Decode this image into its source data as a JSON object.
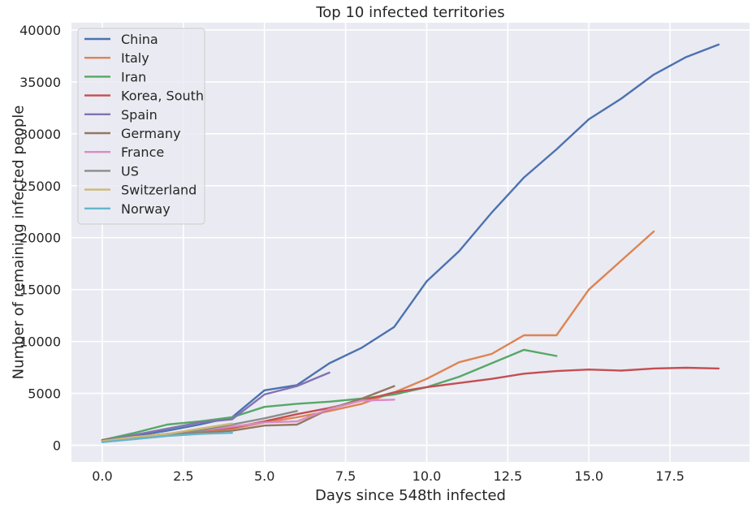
{
  "chart_data": {
    "type": "line",
    "title": "Top 10 infected territories",
    "xlabel": "Days since 548th infected",
    "ylabel": "Number of remaining infected people",
    "xlim": [
      -0.95,
      19.95
    ],
    "ylim": [
      -1600,
      40700
    ],
    "xticks": [
      0.0,
      2.5,
      5.0,
      7.5,
      10.0,
      12.5,
      15.0,
      17.5
    ],
    "xtick_labels": [
      "0.0",
      "2.5",
      "5.0",
      "7.5",
      "10.0",
      "12.5",
      "15.0",
      "17.5"
    ],
    "yticks": [
      0,
      5000,
      10000,
      15000,
      20000,
      25000,
      30000,
      35000,
      40000
    ],
    "ytick_labels": [
      "0",
      "5000",
      "10000",
      "15000",
      "20000",
      "25000",
      "30000",
      "35000",
      "40000"
    ],
    "grid": true,
    "legend_position": "top-left",
    "background": "#eaeaf2",
    "series": [
      {
        "name": "China",
        "color": "#4c72b0",
        "x": [
          0,
          1,
          2,
          3,
          4,
          5,
          6,
          7,
          8,
          9,
          10,
          11,
          12,
          13,
          14,
          15,
          16,
          17,
          18,
          19
        ],
        "y": [
          500,
          900,
          1400,
          2000,
          2700,
          5300,
          5800,
          7900,
          9400,
          11400,
          15800,
          18700,
          22400,
          25800,
          28500,
          31400,
          33400,
          35700,
          37400,
          38600
        ]
      },
      {
        "name": "Italy",
        "color": "#dd8452",
        "x": [
          0,
          1,
          2,
          3,
          4,
          5,
          6,
          7,
          8,
          9,
          10,
          11,
          12,
          13,
          14,
          15,
          16,
          17
        ],
        "y": [
          500,
          700,
          1000,
          1300,
          1600,
          2200,
          2700,
          3300,
          4000,
          5100,
          6400,
          8000,
          8800,
          10600,
          10600,
          15000,
          17800,
          20600
        ]
      },
      {
        "name": "Iran",
        "color": "#55a868",
        "x": [
          0,
          1,
          2,
          3,
          4,
          5,
          6,
          7,
          8,
          9,
          10,
          11,
          12,
          13,
          14
        ],
        "y": [
          500,
          1200,
          2000,
          2300,
          2700,
          3700,
          4000,
          4200,
          4500,
          4900,
          5600,
          6600,
          7900,
          9200,
          8600
        ]
      },
      {
        "name": "Korea, South",
        "color": "#c44e52",
        "x": [
          0,
          1,
          2,
          3,
          4,
          5,
          6,
          7,
          8,
          9,
          10,
          11,
          12,
          13,
          14,
          15,
          16,
          17,
          18,
          19
        ],
        "y": [
          500,
          800,
          1100,
          1400,
          1700,
          2300,
          3000,
          3600,
          4300,
          5100,
          5600,
          6000,
          6400,
          6900,
          7150,
          7300,
          7200,
          7400,
          7470,
          7400
        ]
      },
      {
        "name": "Spain",
        "color": "#8172b3",
        "x": [
          0,
          1,
          2,
          3,
          4,
          5,
          6,
          7
        ],
        "y": [
          400,
          1000,
          1600,
          2200,
          2500,
          4900,
          5700,
          7000
        ]
      },
      {
        "name": "Germany",
        "color": "#937860",
        "x": [
          0,
          1,
          2,
          3,
          4,
          5,
          6,
          7,
          8,
          9
        ],
        "y": [
          450,
          700,
          1000,
          1200,
          1400,
          1900,
          2000,
          3500,
          4500,
          5700
        ]
      },
      {
        "name": "France",
        "color": "#da8bc3",
        "x": [
          0,
          1,
          2,
          3,
          4,
          5,
          6,
          7,
          8,
          9
        ],
        "y": [
          400,
          800,
          1100,
          1400,
          1800,
          2200,
          2300,
          3500,
          4300,
          4400
        ]
      },
      {
        "name": "US",
        "color": "#8c8c8c",
        "x": [
          0,
          1,
          2,
          3,
          4,
          5,
          6
        ],
        "y": [
          400,
          800,
          1100,
          1400,
          2000,
          2600,
          3300
        ]
      },
      {
        "name": "Switzerland",
        "color": "#ccb974",
        "x": [
          0,
          1,
          2,
          3,
          4
        ],
        "y": [
          400,
          800,
          1100,
          1600,
          2100
        ]
      },
      {
        "name": "Norway",
        "color": "#64b5cd",
        "x": [
          0,
          1,
          2,
          3,
          4
        ],
        "y": [
          300,
          600,
          900,
          1100,
          1200
        ]
      }
    ]
  }
}
